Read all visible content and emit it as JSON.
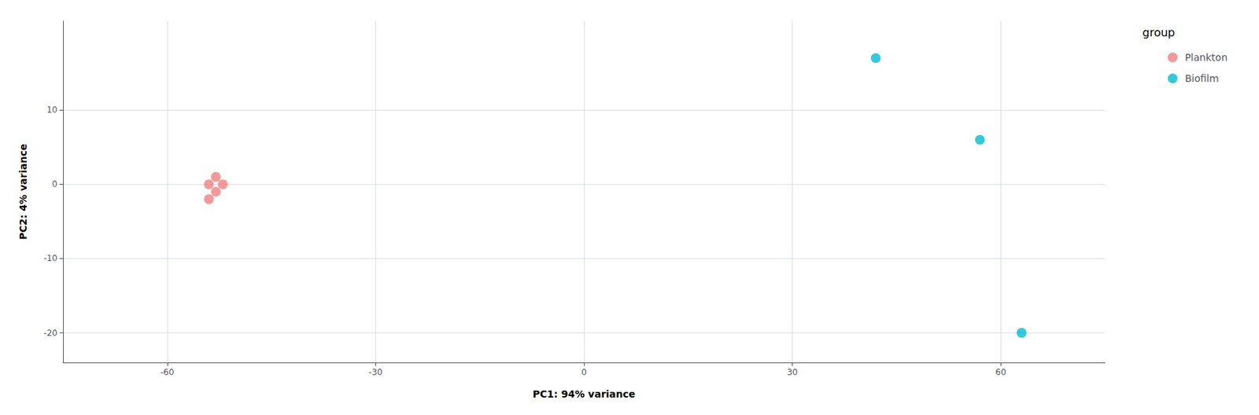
{
  "chart_data": {
    "type": "scatter",
    "xlabel": "PC1: 94% variance",
    "ylabel": "PC2: 4% variance",
    "series": [
      {
        "name": "Plankton",
        "color": "#F08080",
        "x": [
          -54,
          -53,
          -52,
          -53,
          -54
        ],
        "values": [
          -2,
          -1,
          0,
          1,
          0
        ]
      },
      {
        "name": "Biofilm",
        "color": "#00BCD4",
        "x": [
          42,
          57,
          63
        ],
        "values": [
          17,
          6,
          -20
        ]
      }
    ],
    "xlim": [
      -75,
      75
    ],
    "xticks": [
      -60,
      -30,
      0,
      30,
      60
    ],
    "ylim": [
      -24,
      22
    ],
    "yticks": [
      -20,
      -10,
      0,
      10
    ],
    "grid": true,
    "legend": "right",
    "legend_title": "group"
  }
}
